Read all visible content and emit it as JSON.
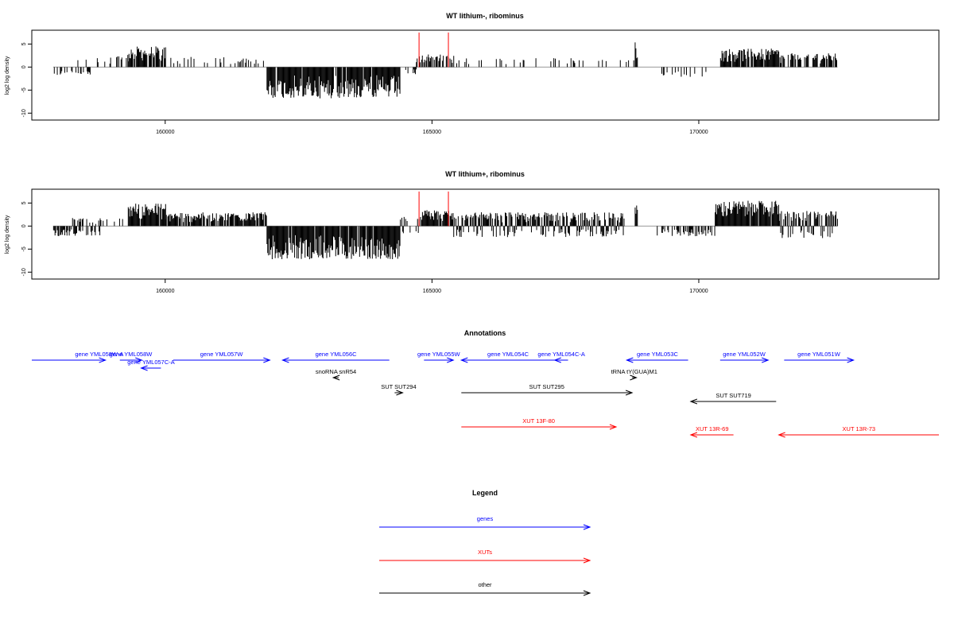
{
  "chart_data": [
    {
      "type": "bar",
      "title": "WT lithium-, ribominus",
      "xlabel": "",
      "ylabel": "log2 log density",
      "xlim": [
        157500,
        174500
      ],
      "ylim": [
        -11.5,
        8
      ],
      "xticks": [
        160000,
        165000,
        170000
      ],
      "xtick_labels": [
        "160000",
        "165000",
        "170000"
      ],
      "yticks": [
        5,
        0,
        -5,
        -10
      ],
      "ytick_labels": [
        "5",
        "0",
        "-5",
        "-10"
      ],
      "bar_color": "#000000",
      "segments": [
        {
          "start": 157900,
          "end": 158600,
          "mode": "neg",
          "amp": 1.8,
          "density": 0.35
        },
        {
          "start": 158300,
          "end": 158900,
          "mode": "pos",
          "amp": 2.0,
          "density": 0.15
        },
        {
          "start": 158900,
          "end": 159300,
          "mode": "pos",
          "amp": 2.8,
          "density": 0.35
        },
        {
          "start": 159300,
          "end": 160000,
          "mode": "pos",
          "amp": 4.5,
          "density": 0.9
        },
        {
          "start": 160000,
          "end": 161900,
          "mode": "pos",
          "amp": 2.2,
          "density": 0.22
        },
        {
          "start": 161900,
          "end": 164400,
          "mode": "neg",
          "amp": 6.8,
          "density": 0.95
        },
        {
          "start": 164500,
          "end": 164700,
          "mode": "neg",
          "amp": 1.8,
          "density": 0.3
        },
        {
          "start": 164700,
          "end": 165400,
          "mode": "pos",
          "amp": 2.8,
          "density": 0.6
        },
        {
          "start": 165400,
          "end": 168800,
          "mode": "pos",
          "amp": 2.0,
          "density": 0.13
        },
        {
          "start": 168800,
          "end": 168850,
          "mode": "pos",
          "amp": 5.5,
          "density": 1.0
        },
        {
          "start": 169300,
          "end": 170200,
          "mode": "neg",
          "amp": 2.2,
          "density": 0.2
        },
        {
          "start": 170400,
          "end": 171500,
          "mode": "pos",
          "amp": 4.0,
          "density": 0.9
        },
        {
          "start": 171500,
          "end": 172600,
          "mode": "pos",
          "amp": 3.0,
          "density": 0.7
        }
      ],
      "highlights": {
        "color": "#ff0000",
        "positions": [
          164750,
          165300
        ],
        "value": 7.5
      }
    },
    {
      "type": "bar",
      "title": "WT lithium+, ribominus",
      "xlabel": "",
      "ylabel": "log2 log density",
      "xlim": [
        157500,
        174500
      ],
      "ylim": [
        -11.5,
        8
      ],
      "xticks": [
        160000,
        165000,
        170000
      ],
      "xtick_labels": [
        "160000",
        "165000",
        "170000"
      ],
      "yticks": [
        5,
        0,
        -5,
        -10
      ],
      "ytick_labels": [
        "5",
        "0",
        "-5",
        "-10"
      ],
      "bar_color": "#000000",
      "segments": [
        {
          "start": 157900,
          "end": 158800,
          "mode": "neg",
          "amp": 2.2,
          "density": 0.55
        },
        {
          "start": 158200,
          "end": 159300,
          "mode": "pos",
          "amp": 1.8,
          "density": 0.25
        },
        {
          "start": 159300,
          "end": 160000,
          "mode": "pos",
          "amp": 5.0,
          "density": 0.95
        },
        {
          "start": 160000,
          "end": 161900,
          "mode": "pos",
          "amp": 3.0,
          "density": 0.85
        },
        {
          "start": 161900,
          "end": 164400,
          "mode": "neg",
          "amp": 7.2,
          "density": 0.95
        },
        {
          "start": 164400,
          "end": 164800,
          "mode": "both",
          "amp": 2.0,
          "density": 0.5
        },
        {
          "start": 164800,
          "end": 165400,
          "mode": "pos",
          "amp": 3.5,
          "density": 0.9
        },
        {
          "start": 165400,
          "end": 168600,
          "mode": "both",
          "amp": 3.0,
          "density": 0.95
        },
        {
          "start": 168800,
          "end": 168850,
          "mode": "pos",
          "amp": 5.5,
          "density": 1.0
        },
        {
          "start": 169200,
          "end": 170300,
          "mode": "neg",
          "amp": 2.2,
          "density": 0.55
        },
        {
          "start": 170300,
          "end": 171500,
          "mode": "pos",
          "amp": 5.5,
          "density": 0.98
        },
        {
          "start": 171500,
          "end": 172600,
          "mode": "both",
          "amp": 3.3,
          "density": 0.85
        }
      ],
      "highlights": {
        "color": "#ff0000",
        "positions": [
          164750,
          165300
        ],
        "value": 7.5
      }
    },
    {
      "type": "annotation_track",
      "title": "Annotations",
      "xlim": [
        157500,
        174500
      ],
      "colors": {
        "gene": "#0000ff",
        "xut": "#ff0000",
        "other": "#000000"
      },
      "features": [
        {
          "label": "",
          "kind": "gene",
          "start": 157500,
          "end": 158800,
          "strand": "none",
          "row": 0
        },
        {
          "label": "gene YML058W-A",
          "kind": "gene",
          "start": 158650,
          "end": 158880,
          "strand": "+",
          "row": 0
        },
        {
          "label": "gene YML058W",
          "kind": "gene",
          "start": 159150,
          "end": 159560,
          "strand": "+",
          "row": 0
        },
        {
          "label": "gene YML057C-A",
          "kind": "gene",
          "start": 159550,
          "end": 159920,
          "strand": "-",
          "row": 1
        },
        {
          "label": "gene YML057W",
          "kind": "gene",
          "start": 160150,
          "end": 161960,
          "strand": "+",
          "row": 0
        },
        {
          "label": "gene YML056C",
          "kind": "gene",
          "start": 162200,
          "end": 164200,
          "strand": "-",
          "row": 0
        },
        {
          "label": "gene YML055W",
          "kind": "gene",
          "start": 164850,
          "end": 165400,
          "strand": "+",
          "row": 0
        },
        {
          "label": "gene YML054C",
          "kind": "gene",
          "start": 165550,
          "end": 167300,
          "strand": "-",
          "row": 0
        },
        {
          "label": "gene YML054C-A",
          "kind": "gene",
          "start": 167300,
          "end": 167550,
          "strand": "-",
          "row": 0
        },
        {
          "label": "gene YML053C",
          "kind": "gene",
          "start": 168650,
          "end": 169800,
          "strand": "-",
          "row": 0
        },
        {
          "label": "gene YML052W",
          "kind": "gene",
          "start": 170400,
          "end": 171300,
          "strand": "+",
          "row": 0
        },
        {
          "label": "gene YML051W",
          "kind": "gene",
          "start": 171600,
          "end": 172900,
          "strand": "+",
          "row": 0
        },
        {
          "label": "snoRNA snR54",
          "kind": "other",
          "start": 163150,
          "end": 163250,
          "strand": "-",
          "row": 2
        },
        {
          "label": "tRNA tY(GUA)M1",
          "kind": "other",
          "start": 168750,
          "end": 168830,
          "strand": "+",
          "row": 2
        },
        {
          "label": "SUT SUT294",
          "kind": "other",
          "start": 164300,
          "end": 164450,
          "strand": "+",
          "row": 3
        },
        {
          "label": "SUT SUT295",
          "kind": "other",
          "start": 165550,
          "end": 168750,
          "strand": "+",
          "row": 3
        },
        {
          "label": "SUT SUT719",
          "kind": "other",
          "start": 169850,
          "end": 171450,
          "strand": "-",
          "row": 4
        },
        {
          "label": "XUT 13F-80",
          "kind": "xut",
          "start": 165550,
          "end": 168450,
          "strand": "+",
          "row": 5
        },
        {
          "label": "XUT 13R-69",
          "kind": "xut",
          "start": 169850,
          "end": 170650,
          "strand": "-",
          "row": 6
        },
        {
          "label": "XUT 13R-73",
          "kind": "xut",
          "start": 171500,
          "end": 174500,
          "strand": "-",
          "row": 6
        }
      ]
    },
    {
      "type": "legend",
      "title": "Legend",
      "entries": [
        {
          "label": "genes",
          "color": "#0000ff"
        },
        {
          "label": "XUTs",
          "color": "#ff0000"
        },
        {
          "label": "other",
          "color": "#000000"
        }
      ]
    }
  ]
}
